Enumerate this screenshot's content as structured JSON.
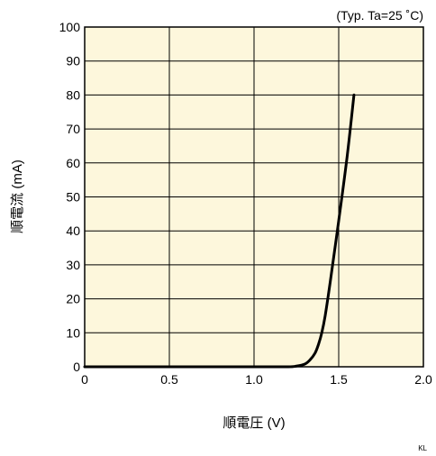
{
  "chart_data": {
    "type": "line",
    "title": "",
    "condition_note": "(Typ. Ta=25 ˚C)",
    "xlabel": "順電圧 (V)",
    "ylabel": "順電流 (mA)",
    "xlim": [
      0,
      2.0
    ],
    "ylim": [
      0,
      100
    ],
    "x_ticks": [
      "0",
      "0.5",
      "1.0",
      "1.5",
      "2.0"
    ],
    "y_ticks": [
      "0",
      "10",
      "20",
      "30",
      "40",
      "50",
      "60",
      "70",
      "80",
      "90",
      "100"
    ],
    "grid": true,
    "series": [
      {
        "x": [
          0.0,
          0.5,
          1.0,
          1.2,
          1.25,
          1.3,
          1.33,
          1.36,
          1.38,
          1.4,
          1.42,
          1.45,
          1.5,
          1.55,
          1.59
        ],
        "y": [
          0,
          0,
          0,
          0,
          0.2,
          0.8,
          2,
          4,
          6.5,
          10,
          15,
          25,
          43,
          62,
          80
        ]
      }
    ],
    "colors": {
      "plot_background": "#fdf7dc",
      "curve": "#000000",
      "grid": "#000000"
    }
  },
  "footer": {
    "code": "KL"
  }
}
